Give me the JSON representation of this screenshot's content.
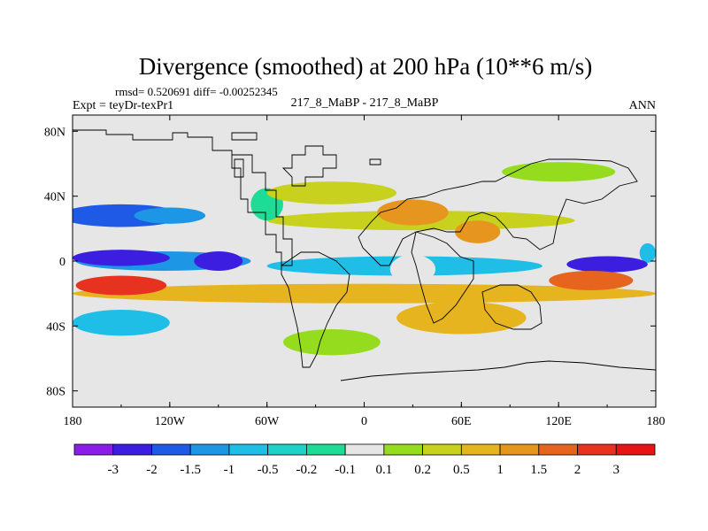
{
  "chart_data": {
    "type": "heatmap",
    "title": "Divergence (smoothed) at 200 hPa (10**6 m/s)",
    "stats": "rmsd= 0.520691 diff= -0.00252345",
    "left_label": "Expt = teyDr-texPr1",
    "center_label": "217_8_MaBP - 217_8_MaBP",
    "right_label": "ANN",
    "x_range": [
      -180,
      180
    ],
    "y_range": [
      -90,
      90
    ],
    "x_ticks": [
      {
        "value": -180,
        "label": "180"
      },
      {
        "value": -120,
        "label": "120W"
      },
      {
        "value": -60,
        "label": "60W"
      },
      {
        "value": 0,
        "label": "0"
      },
      {
        "value": 60,
        "label": "60E"
      },
      {
        "value": 120,
        "label": "120E"
      },
      {
        "value": 180,
        "label": "180"
      }
    ],
    "y_ticks": [
      {
        "value": 80,
        "label": "80N"
      },
      {
        "value": 40,
        "label": "40N"
      },
      {
        "value": 0,
        "label": "0"
      },
      {
        "value": -40,
        "label": "40S"
      },
      {
        "value": -80,
        "label": "80S"
      }
    ],
    "colorbar": {
      "colors": [
        "#8a1ee8",
        "#3c1ee0",
        "#1e5ae6",
        "#1e96e6",
        "#1ebee6",
        "#1ed2c8",
        "#1edc96",
        "#e6e6e6",
        "#96dc1e",
        "#c8d21e",
        "#e6b41e",
        "#e6961e",
        "#e6641e",
        "#e6321e",
        "#e61414"
      ],
      "labels": [
        "-3",
        "-2",
        "-1.5",
        "-1",
        "-0.5",
        "-0.2",
        "-0.1",
        "0.1",
        "0.2",
        "0.5",
        "1",
        "1.5",
        "2",
        "3"
      ]
    },
    "bands": [
      {
        "lat": 5,
        "level": -5,
        "lon": [
          170,
          180
        ]
      },
      {
        "lat": 0,
        "level": -7,
        "lon": [
          -178,
          -70
        ]
      },
      {
        "lat": -3,
        "level": -5,
        "lon": [
          -60,
          110
        ]
      },
      {
        "lat": -20,
        "level": 4,
        "lon": [
          -180,
          180
        ]
      },
      {
        "lat": 25,
        "level": 3,
        "lon": [
          -60,
          130
        ]
      }
    ],
    "blobs": [
      {
        "lon": -150,
        "lat": 28,
        "rlon": 38,
        "rlat": 7,
        "level": 2
      },
      {
        "lon": -120,
        "lat": 28,
        "rlon": 22,
        "rlat": 5,
        "level": 3
      },
      {
        "lon": -150,
        "lat": 2,
        "rlon": 30,
        "rlat": 5,
        "level": 1
      },
      {
        "lon": -60,
        "lat": 35,
        "rlon": 10,
        "rlat": 10,
        "level": 6
      },
      {
        "lon": -20,
        "lat": 42,
        "rlon": 40,
        "rlat": 7,
        "level": 9
      },
      {
        "lon": 30,
        "lat": 30,
        "rlon": 22,
        "rlat": 8,
        "level": 11
      },
      {
        "lon": 70,
        "lat": 18,
        "rlon": 14,
        "rlat": 7,
        "level": 11
      },
      {
        "lon": 30,
        "lat": -5,
        "rlon": 14,
        "rlat": 9,
        "level": 7
      },
      {
        "lon": -90,
        "lat": 0,
        "rlon": 15,
        "rlat": 6,
        "level": 1
      },
      {
        "lon": 150,
        "lat": -2,
        "rlon": 25,
        "rlat": 5,
        "level": 1
      },
      {
        "lon": -150,
        "lat": -15,
        "rlon": 28,
        "rlat": 6,
        "level": 13
      },
      {
        "lon": 140,
        "lat": -12,
        "rlon": 26,
        "rlat": 6,
        "level": 12
      },
      {
        "lon": -150,
        "lat": -38,
        "rlon": 30,
        "rlat": 8,
        "level": 4
      },
      {
        "lon": 60,
        "lat": -35,
        "rlon": 40,
        "rlat": 10,
        "level": 10
      },
      {
        "lon": 120,
        "lat": 55,
        "rlon": 35,
        "rlat": 6,
        "level": 8
      },
      {
        "lon": -20,
        "lat": -50,
        "rlon": 30,
        "rlat": 8,
        "level": 8
      }
    ]
  }
}
